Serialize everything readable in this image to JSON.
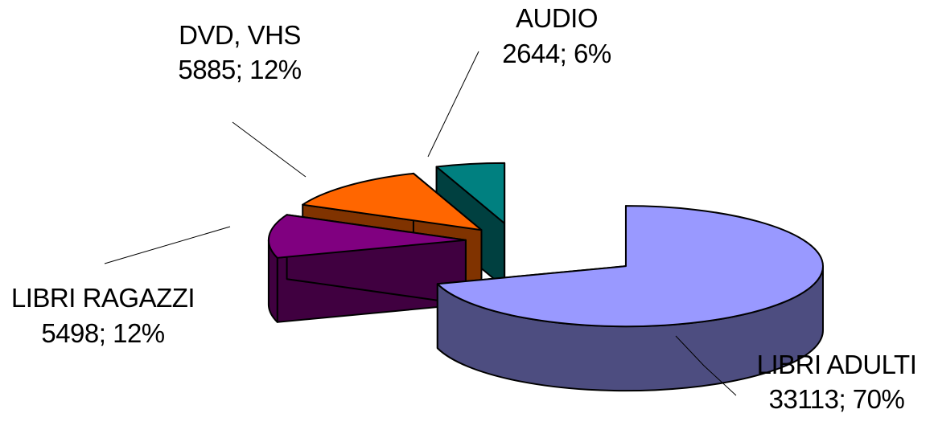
{
  "chart_data": {
    "type": "pie",
    "style": "3d-exploded",
    "title": "",
    "slices": [
      {
        "name": "LIBRI ADULTI",
        "value": 33113,
        "percent_label": "70%",
        "value_label": "33113; 70%",
        "color": "#9999ff",
        "side_color": "#4d4d80"
      },
      {
        "name": "LIBRI RAGAZZI",
        "value": 5498,
        "percent_label": "12%",
        "value_label": "5498; 12%",
        "color": "#800080",
        "side_color": "#400040"
      },
      {
        "name": "DVD, VHS",
        "value": 5885,
        "percent_label": "12%",
        "value_label": "5885; 12%",
        "color": "#ff6600",
        "side_color": "#803300"
      },
      {
        "name": "AUDIO",
        "value": 2644,
        "percent_label": "6%",
        "value_label": "2644; 6%",
        "color": "#008080",
        "side_color": "#004040"
      }
    ],
    "legend": "none",
    "data_labels": "outside-with-leader-lines"
  }
}
